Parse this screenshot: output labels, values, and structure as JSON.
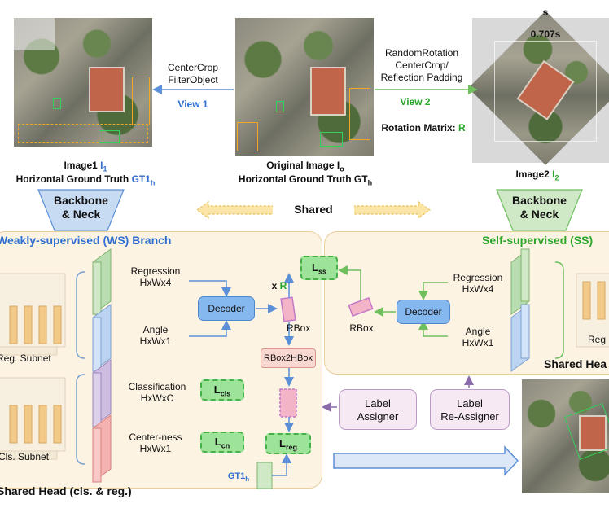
{
  "top": {
    "size_label_s": "s",
    "size_label_707": "0.707s",
    "image1_caption_line1": "Image1 ",
    "image1_symbol": "I",
    "image1_sub": "1",
    "image1_caption_line2": "Horizontal Ground Truth ",
    "image1_gt": "GT1",
    "image1_gt_sub": "h",
    "orig_caption_line1": "Original Image I",
    "orig_sub": "o",
    "orig_caption_line2": "Horizontal Ground Truth GT",
    "orig_gt_sub": "h",
    "image2_caption": "Image2 ",
    "image2_symbol": "I",
    "image2_sub": "2",
    "view1_ops": [
      "CenterCrop",
      "FilterObject"
    ],
    "view1_label": "View 1",
    "view2_ops": [
      "RandomRotation",
      "CenterCrop/",
      "Reflection Padding"
    ],
    "view2_label": "View 2",
    "rotation_matrix_label": "Rotation Matrix: ",
    "rotation_matrix_symbol": "R"
  },
  "backbone": {
    "left_label": [
      "Backbone",
      "& Neck"
    ],
    "right_label": [
      "Backbone",
      "& Neck"
    ],
    "shared_label": "Shared"
  },
  "ws_branch": {
    "title": "Weakly-supervised (WS) Branch",
    "reg_subnet": "Reg. Subnet",
    "cls_subnet": "Cls. Subnet",
    "shared_head": "Shared Head (cls. & reg.)",
    "regression": [
      "Regression",
      "HxWx4"
    ],
    "angle": [
      "Angle",
      "HxWx1"
    ],
    "classification": [
      "Classification",
      "HxWxC"
    ],
    "centerness": [
      "Center-ness",
      "HxWx1"
    ],
    "decoder": "Decoder",
    "rbox": "RBox",
    "rbox2hbox": "RBox2HBox",
    "times_r": "x ",
    "r_symbol": "R",
    "gt1h": "GT1",
    "gt1h_sub": "h"
  },
  "losses": {
    "ss": {
      "main": "L",
      "sub": "ss"
    },
    "cls": {
      "main": "L",
      "sub": "cls"
    },
    "cn": {
      "main": "L",
      "sub": "cn"
    },
    "reg": {
      "main": "L",
      "sub": "reg"
    }
  },
  "ss_branch": {
    "title": "Self-supervised (SS)",
    "regression": [
      "Regression",
      "HxWx4"
    ],
    "angle": [
      "Angle",
      "HxWx1"
    ],
    "decoder": "Decoder",
    "rbox": "RBox",
    "shared_head": "Shared Hea",
    "reg_cut": "Reg"
  },
  "assigners": {
    "label_assigner": [
      "Label",
      "Assigner"
    ],
    "label_reassigner": [
      "Label",
      "Re-Assigner"
    ]
  },
  "colors": {
    "ws_blue": "#2f6fd1",
    "ss_green": "#2aa52a",
    "panel_fill": "#fdf3e3",
    "panel_border": "#e8cf9c",
    "decoder_fill": "#86b8f0",
    "assigner_fill": "#f6e9f4",
    "loss_fill": "#9ee39a"
  }
}
